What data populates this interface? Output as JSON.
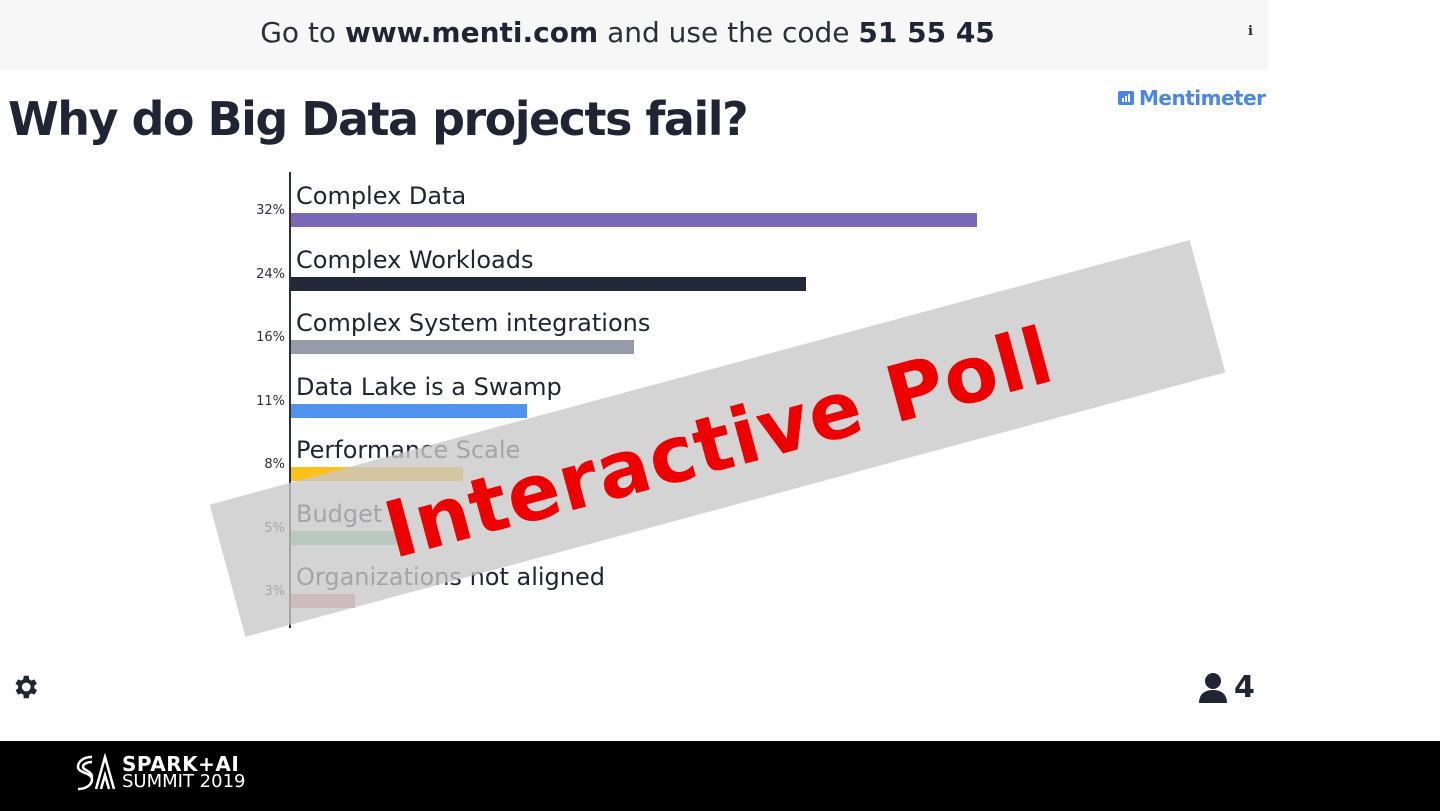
{
  "header": {
    "prefix": "Go to",
    "url": "www.menti.com",
    "middle": "and use the code",
    "code": "51 55 45",
    "info_icon": "info-icon"
  },
  "brand": {
    "name": "Mentimeter",
    "color": "#4a86e8"
  },
  "title": "Why do Big Data projects fail?",
  "chart_data": {
    "type": "bar",
    "orientation": "horizontal",
    "categories": [
      "Complex Data",
      "Complex Workloads",
      "Complex System integrations",
      "Data Lake is a Swamp",
      "Performance Scale",
      "Budget",
      "Organizations not aligned"
    ],
    "values": [
      32,
      24,
      16,
      11,
      8,
      5,
      3
    ],
    "value_labels": [
      "32%",
      "24%",
      "16%",
      "11%",
      "8%",
      "5%",
      "3%"
    ],
    "colors": [
      "#7b68b8",
      "#232939",
      "#959ba8",
      "#4f93ee",
      "#fdc016",
      "#7fc4a4",
      "#e38ea5"
    ],
    "unit": "%",
    "xlim": [
      0,
      32
    ]
  },
  "overlay": {
    "text": "Interactive Poll",
    "color": "#ee0000"
  },
  "footer": {
    "participants": "4",
    "settings_icon": "gear-icon",
    "event_line1": "SPARK+AI",
    "event_line2": "SUMMIT 2019"
  }
}
